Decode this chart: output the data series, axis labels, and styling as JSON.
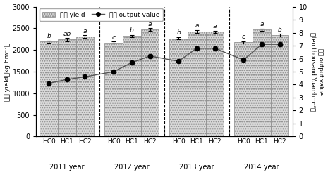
{
  "years": [
    "2011 year",
    "2012 year",
    "2013 year",
    "2014 year"
  ],
  "groups": [
    "HC0",
    "HC1",
    "HC2"
  ],
  "bar_values": [
    [
      2190,
      2240,
      2310
    ],
    [
      2170,
      2320,
      2470
    ],
    [
      2270,
      2430,
      2420
    ],
    [
      2180,
      2470,
      2340
    ]
  ],
  "bar_errors": [
    [
      30,
      35,
      30
    ],
    [
      25,
      30,
      30
    ],
    [
      30,
      30,
      25
    ],
    [
      25,
      25,
      30
    ]
  ],
  "line_values": [
    4.1,
    4.4,
    4.6,
    5.0,
    5.7,
    6.2,
    5.8,
    6.8,
    6.8,
    5.9,
    7.1,
    7.1
  ],
  "line_errors": [
    0.1,
    0.1,
    0.15,
    0.1,
    0.1,
    0.15,
    0.1,
    0.15,
    0.15,
    0.15,
    0.15,
    0.15
  ],
  "bar_labels": [
    [
      "b",
      "ab",
      "a"
    ],
    [
      "c",
      "b",
      "a"
    ],
    [
      "b",
      "a",
      "a"
    ],
    [
      "c",
      "a",
      "b"
    ]
  ],
  "ylim_left": [
    0,
    3000
  ],
  "ylim_right": [
    0,
    10
  ],
  "yticks_left": [
    0,
    500,
    1000,
    1500,
    2000,
    2500,
    3000
  ],
  "yticks_right": [
    0,
    1,
    2,
    3,
    4,
    5,
    6,
    7,
    8,
    9,
    10
  ],
  "bar_color": "#d8d8d8",
  "bar_hatch": ".....",
  "line_color": "#555555",
  "marker_color": "#111111",
  "left_ylabel_cn": "产量 yield（kg·hm⁻²）",
  "right_ylabel_line1": "产値 output value",
  "right_ylabel_line2": "（ten thousand Yuan·hm⁻²）",
  "legend_bar_label": "产量 yield",
  "legend_line_label": "产値 output value",
  "dpi": 100
}
